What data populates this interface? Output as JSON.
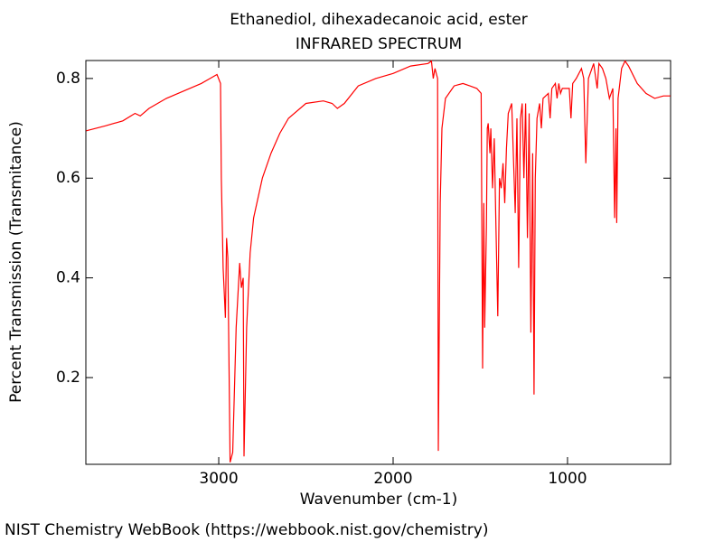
{
  "chart_data": {
    "type": "line",
    "title": "Ethanediol, dihexadecanoic acid, ester",
    "subtitle": "INFRARED SPECTRUM",
    "x_label": "Wavenumber (cm-1)",
    "y_label": "Percent Transmission (Transmitance)",
    "footer": "NIST Chemistry WebBook (https://webbook.nist.gov/chemistry)",
    "xlim": [
      3762,
      409
    ],
    "ylim": [
      0.026,
      0.836
    ],
    "xticks": [
      3000,
      2000,
      1000
    ],
    "yticks": [
      0.2,
      0.4,
      0.6,
      0.8
    ],
    "color": "#ff0000",
    "x": [
      3760,
      3650,
      3550,
      3480,
      3450,
      3400,
      3300,
      3200,
      3100,
      3050,
      3010,
      2990,
      2985,
      2975,
      2962,
      2955,
      2948,
      2935,
      2920,
      2900,
      2880,
      2870,
      2860,
      2855,
      2840,
      2820,
      2800,
      2750,
      2700,
      2650,
      2600,
      2500,
      2400,
      2350,
      2320,
      2280,
      2200,
      2100,
      2000,
      1900,
      1800,
      1780,
      1770,
      1760,
      1745,
      1741,
      1730,
      1720,
      1700,
      1650,
      1600,
      1560,
      1520,
      1495,
      1487,
      1480,
      1475,
      1465,
      1460,
      1455,
      1445,
      1440,
      1430,
      1420,
      1410,
      1400,
      1390,
      1380,
      1370,
      1360,
      1350,
      1340,
      1320,
      1300,
      1290,
      1280,
      1270,
      1260,
      1250,
      1240,
      1230,
      1220,
      1210,
      1200,
      1192,
      1185,
      1175,
      1160,
      1150,
      1140,
      1110,
      1100,
      1090,
      1070,
      1060,
      1050,
      1040,
      1030,
      990,
      980,
      970,
      950,
      920,
      907,
      895,
      880,
      850,
      830,
      820,
      800,
      780,
      760,
      740,
      730,
      722,
      718,
      710,
      690,
      670,
      650,
      600,
      550,
      500,
      450,
      410
    ],
    "values": [
      0.695,
      0.705,
      0.715,
      0.73,
      0.725,
      0.74,
      0.76,
      0.775,
      0.79,
      0.8,
      0.808,
      0.79,
      0.6,
      0.42,
      0.32,
      0.48,
      0.44,
      0.03,
      0.05,
      0.3,
      0.43,
      0.38,
      0.4,
      0.042,
      0.3,
      0.45,
      0.52,
      0.6,
      0.65,
      0.69,
      0.72,
      0.75,
      0.755,
      0.75,
      0.74,
      0.75,
      0.785,
      0.8,
      0.81,
      0.825,
      0.83,
      0.835,
      0.8,
      0.82,
      0.8,
      0.053,
      0.55,
      0.7,
      0.76,
      0.785,
      0.79,
      0.785,
      0.78,
      0.77,
      0.218,
      0.55,
      0.3,
      0.5,
      0.7,
      0.71,
      0.65,
      0.7,
      0.58,
      0.68,
      0.5,
      0.323,
      0.6,
      0.58,
      0.63,
      0.55,
      0.66,
      0.73,
      0.75,
      0.53,
      0.72,
      0.42,
      0.72,
      0.75,
      0.6,
      0.75,
      0.48,
      0.73,
      0.29,
      0.65,
      0.166,
      0.6,
      0.72,
      0.75,
      0.7,
      0.76,
      0.77,
      0.72,
      0.78,
      0.79,
      0.76,
      0.79,
      0.77,
      0.78,
      0.78,
      0.72,
      0.79,
      0.8,
      0.82,
      0.8,
      0.63,
      0.8,
      0.83,
      0.78,
      0.83,
      0.82,
      0.8,
      0.76,
      0.78,
      0.52,
      0.7,
      0.51,
      0.76,
      0.82,
      0.835,
      0.825,
      0.79,
      0.77,
      0.76,
      0.765,
      0.765
    ]
  }
}
